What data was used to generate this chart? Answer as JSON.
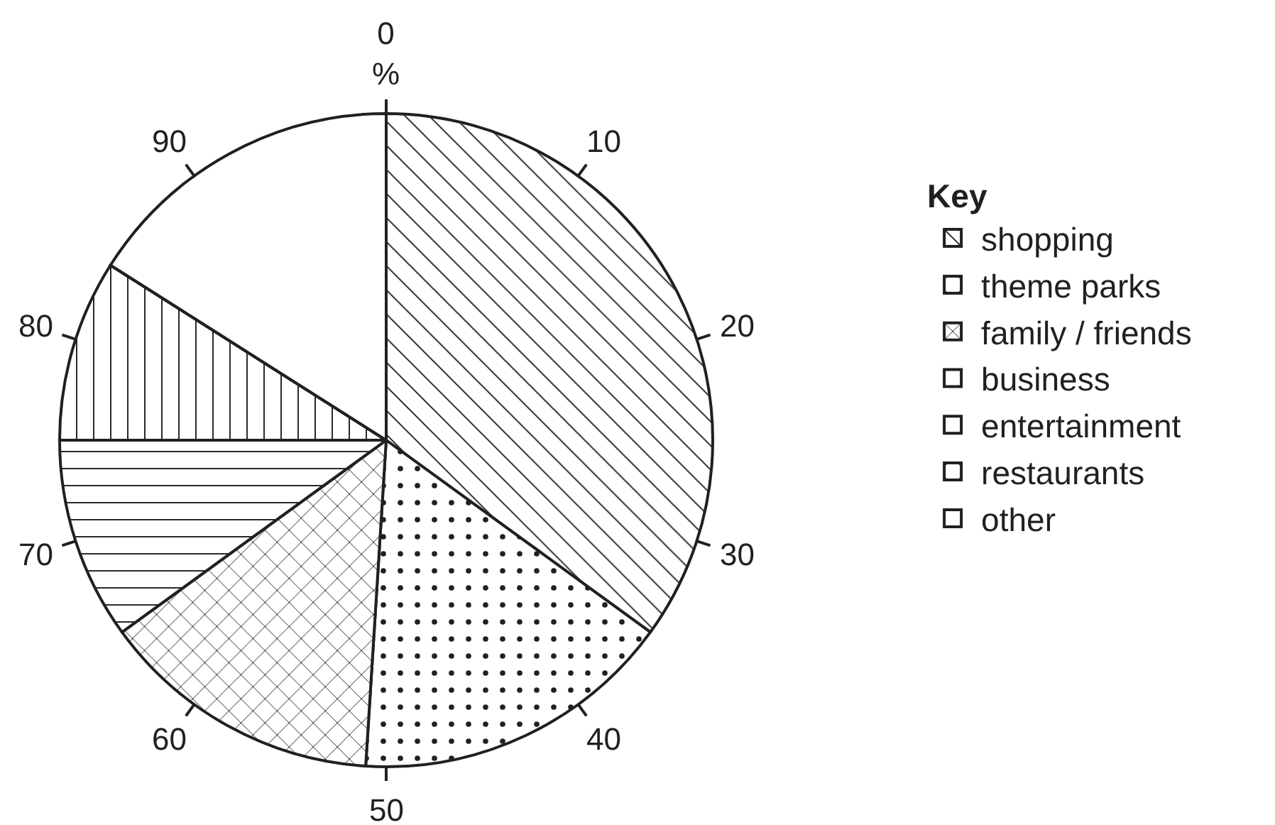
{
  "chart_data": {
    "type": "pie",
    "categories": [
      "shopping",
      "theme parks",
      "family / friends",
      "business",
      "entertainment",
      "restaurants",
      "other",
      null
    ],
    "values": [
      35,
      16,
      14,
      10,
      9,
      null,
      null,
      16
    ],
    "colors": [
      "#231f20",
      "#231f20",
      "#231f20",
      "#231f20",
      "#231f20",
      "#231f20",
      "#231f20",
      "#ffffff"
    ],
    "annotations": [
      "0\n%",
      "10",
      "20",
      "30",
      "40",
      "50",
      "60",
      "70",
      "80",
      "90"
    ],
    "legend_title": "Key",
    "legend": "right"
  }
}
